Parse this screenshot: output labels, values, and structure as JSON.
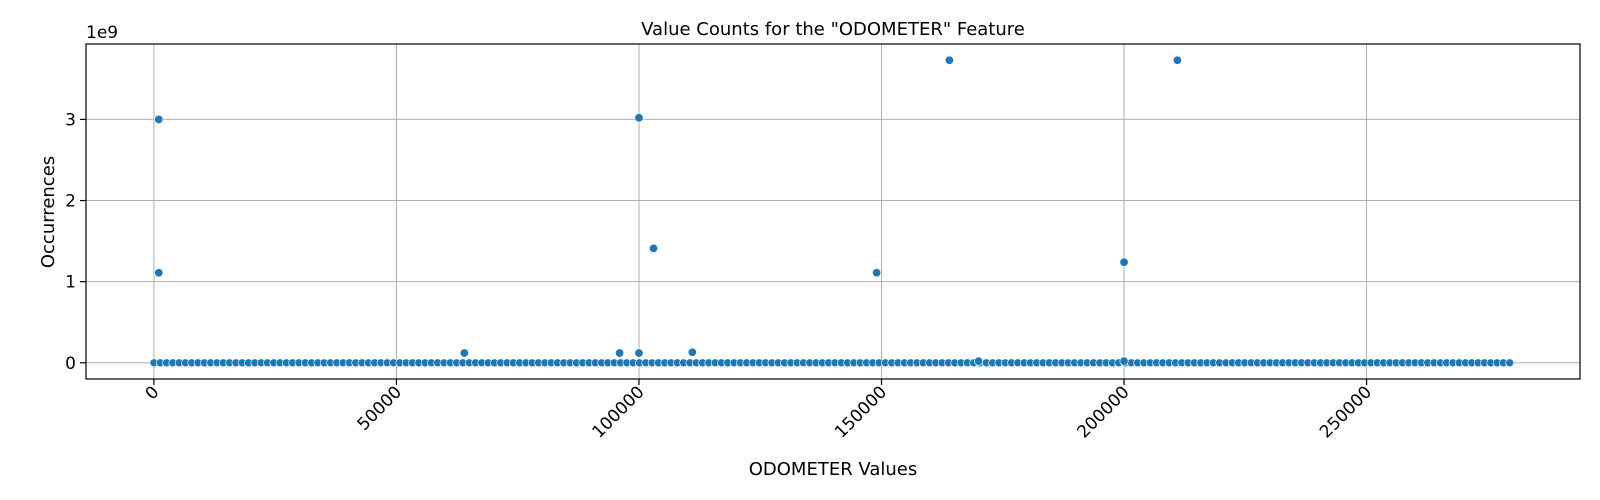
{
  "chart_data": {
    "type": "scatter",
    "title": "Value Counts for the \"ODOMETER\" Feature",
    "xlabel": "ODOMETER Values",
    "ylabel": "Occurrences",
    "y_offset_text": "1e9",
    "xlim": [
      -14000,
      294000
    ],
    "ylim": [
      -0.2,
      3.93
    ],
    "x_ticks": [
      0,
      50000,
      100000,
      150000,
      200000,
      250000
    ],
    "x_tick_labels": [
      "0",
      "50000",
      "100000",
      "150000",
      "200000",
      "250000"
    ],
    "y_ticks": [
      0,
      1,
      2,
      3
    ],
    "y_tick_labels": [
      "0",
      "1",
      "2",
      "3"
    ],
    "y_unit_multiplier": 1000000000,
    "grid": true,
    "marker_color": "#1f77b4",
    "baseline": {
      "x_start": 0,
      "x_end": 280000,
      "x_step": 1300,
      "y": 0
    },
    "points": [
      {
        "x": 1000,
        "y": 3.0
      },
      {
        "x": 1000,
        "y": 1.11
      },
      {
        "x": 64000,
        "y": 0.12
      },
      {
        "x": 96000,
        "y": 0.12
      },
      {
        "x": 100000,
        "y": 3.02
      },
      {
        "x": 100000,
        "y": 0.12
      },
      {
        "x": 103000,
        "y": 1.41
      },
      {
        "x": 111000,
        "y": 0.13
      },
      {
        "x": 149000,
        "y": 1.11
      },
      {
        "x": 164000,
        "y": 3.73
      },
      {
        "x": 170000,
        "y": 0.02
      },
      {
        "x": 200000,
        "y": 1.24
      },
      {
        "x": 200000,
        "y": 0.02
      },
      {
        "x": 211000,
        "y": 3.73
      }
    ]
  }
}
